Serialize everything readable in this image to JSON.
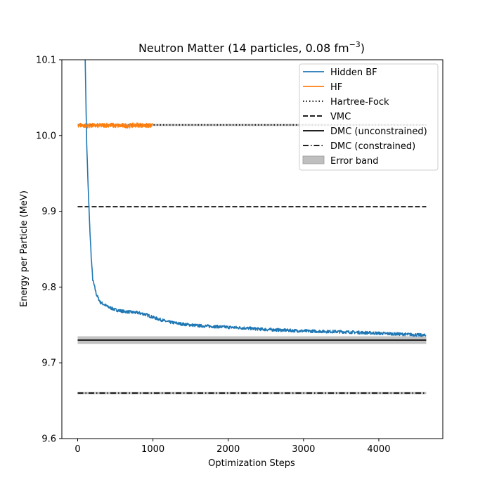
{
  "chart_data": {
    "type": "line",
    "title_main": "Neutron Matter (14 particles, 0.08 fm",
    "title_sup": "−3",
    "title_close": ")",
    "xlabel": "Optimization Steps",
    "ylabel": "Energy per Particle (MeV)",
    "xlim": [
      -210,
      4850
    ],
    "ylim": [
      9.6,
      10.1
    ],
    "xticks": [
      0,
      1000,
      2000,
      3000,
      4000
    ],
    "xtick_labels": [
      "0",
      "1000",
      "2000",
      "3000",
      "4000"
    ],
    "yticks": [
      9.6,
      9.7,
      9.8,
      9.9,
      10.0,
      10.1
    ],
    "ytick_labels": [
      "9.6",
      "9.7",
      "9.8",
      "9.9",
      "10.0",
      "10.1"
    ],
    "grid": false,
    "legend_position": "top-right",
    "series": [
      {
        "name": "Hidden BF",
        "color": "#1f77b4",
        "style": "solid",
        "x": [
          100,
          120,
          140,
          160,
          180,
          200,
          250,
          300,
          400,
          500,
          600,
          700,
          800,
          900,
          1000,
          1200,
          1400,
          1600,
          1800,
          2000,
          2200,
          2500,
          3000,
          3500,
          4000,
          4500,
          4630
        ],
        "y": [
          10.1,
          9.99,
          9.93,
          9.88,
          9.84,
          9.81,
          9.79,
          9.78,
          9.774,
          9.77,
          9.768,
          9.767,
          9.766,
          9.764,
          9.76,
          9.754,
          9.751,
          9.749,
          9.748,
          9.747,
          9.746,
          9.744,
          9.742,
          9.741,
          9.739,
          9.737,
          9.736
        ],
        "noise": 0.002
      },
      {
        "name": "HF",
        "color": "#ff7f0e",
        "style": "solid",
        "x": [
          0,
          100,
          200,
          300,
          400,
          500,
          600,
          700,
          800,
          900,
          1000
        ],
        "y": [
          10.014,
          10.013,
          10.013,
          10.013,
          10.014,
          10.013,
          10.013,
          10.013,
          10.014,
          10.013,
          10.013
        ],
        "noise": 0.003
      }
    ],
    "reference_lines": [
      {
        "name": "Hartree-Fock",
        "value": 10.014,
        "style": "dotted",
        "color": "#000000",
        "error": 0.0015
      },
      {
        "name": "VMC",
        "value": 9.906,
        "style": "dashed",
        "color": "#000000",
        "error": 0
      },
      {
        "name": "DMC (unconstrained)",
        "value": 9.73,
        "style": "solid",
        "color": "#000000",
        "error": 0.005
      },
      {
        "name": "DMC (constrained)",
        "value": 9.66,
        "style": "dashdot",
        "color": "#000000",
        "error": 0.0015
      }
    ],
    "reference_x_range": [
      0,
      4630
    ],
    "band_label": "Error band",
    "band_color": "#bfbfbf"
  }
}
